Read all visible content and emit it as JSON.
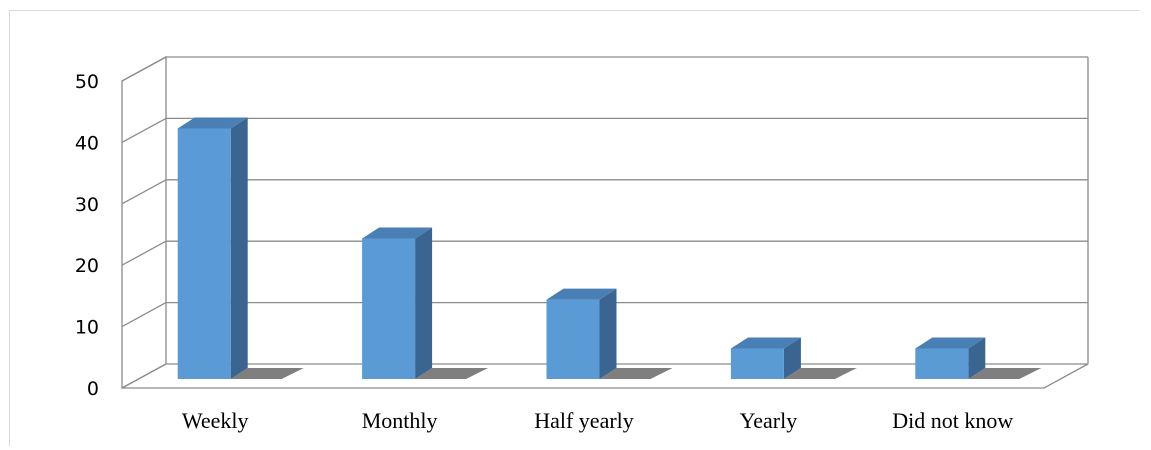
{
  "chart_data": {
    "type": "bar",
    "style": "3d-clustered-column",
    "categories": [
      "Weekly",
      "Monthly",
      "Half yearly",
      "Yearly",
      "Did not know"
    ],
    "values": [
      41,
      23,
      13,
      5,
      5
    ],
    "ylim": [
      0,
      50
    ],
    "yticks": [
      "0",
      "10",
      "20",
      "30",
      "40",
      "50"
    ],
    "title": "",
    "xlabel": "",
    "ylabel": "",
    "grid": true,
    "legend": "none",
    "colors": {
      "bar_front": "#5b9bd5",
      "bar_side": "#3a6590",
      "bar_top": "#4a7fb5",
      "shadow": "#7f7f7f",
      "grid": "#8c8c8c"
    }
  }
}
